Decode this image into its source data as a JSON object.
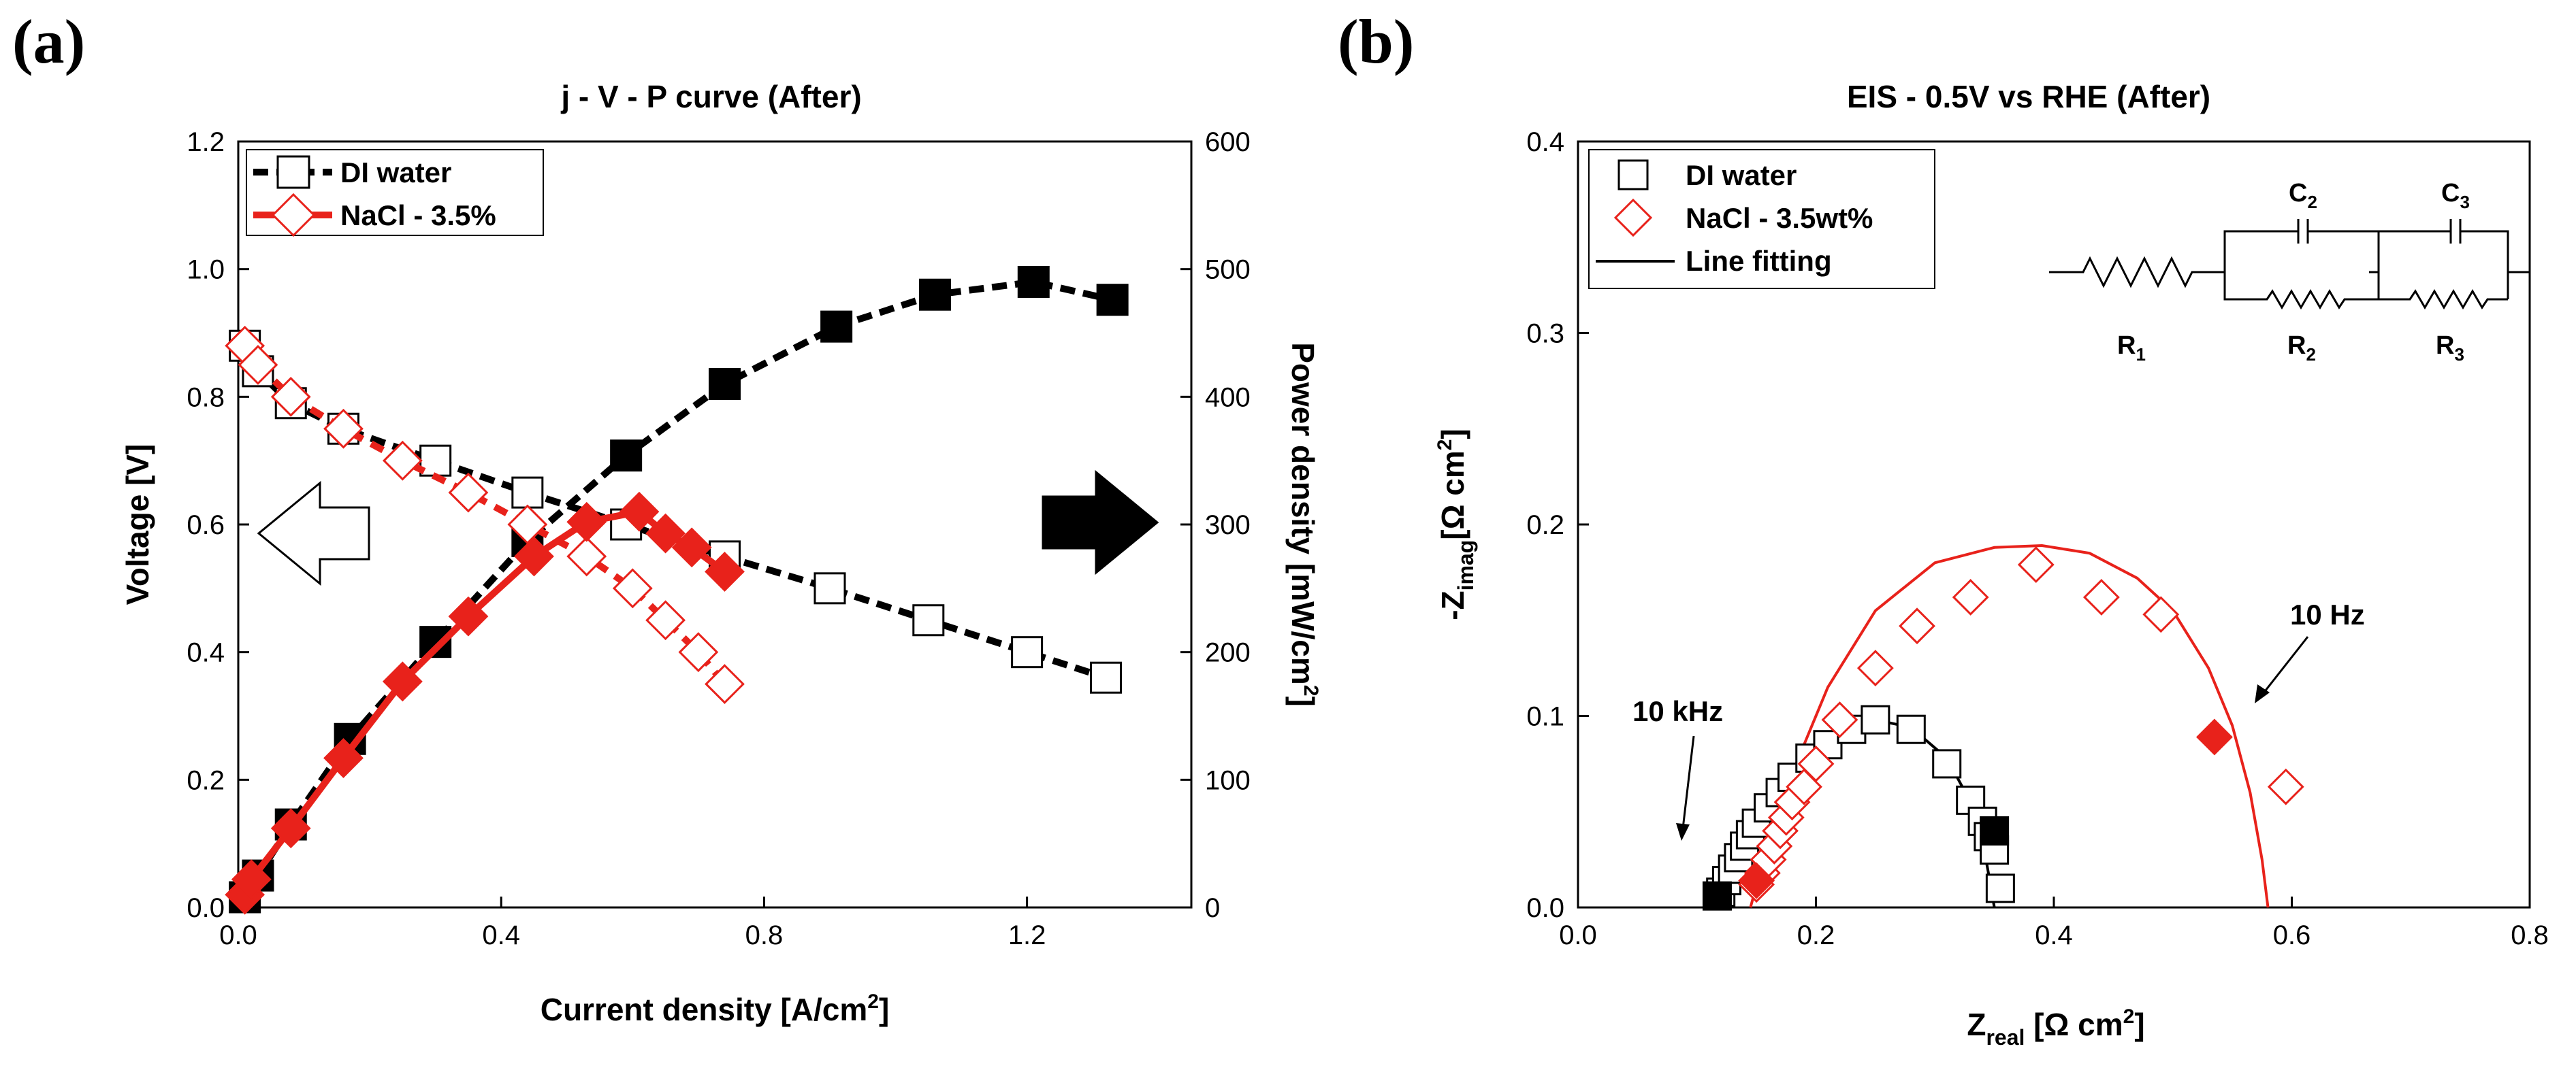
{
  "panels": {
    "a_label": "(a)",
    "b_label": "(b)"
  },
  "colors": {
    "black": "#000000",
    "red": "#e8221b"
  },
  "circuit": {
    "r1": "R",
    "r1_sub": "1",
    "r2": "R",
    "r2_sub": "2",
    "r3": "R",
    "r3_sub": "3",
    "c2": "C",
    "c2_sub": "2",
    "c3": "C",
    "c3_sub": "3"
  },
  "chart_data": [
    {
      "type": "line",
      "title": "j - V - P curve (After)",
      "xlabel": "Current density [A/cm",
      "xlabel_sup": "2",
      "xlabel_end": "]",
      "ylabel": "Voltage [V]",
      "y2label": "Power density [mW/cm",
      "y2label_sup": "2",
      "y2label_end": "]",
      "xlim": [
        0,
        1.45
      ],
      "ylim": [
        0,
        1.2
      ],
      "y2lim": [
        0,
        600
      ],
      "xticks": [
        "0.0",
        "0.4",
        "0.8",
        "1.2"
      ],
      "yticks": [
        "0.0",
        "0.2",
        "0.4",
        "0.6",
        "0.8",
        "1.0",
        "1.2"
      ],
      "y2ticks": [
        "0",
        "100",
        "200",
        "300",
        "400",
        "500",
        "600"
      ],
      "legend": [
        "DI water",
        "NaCl - 3.5%"
      ],
      "series": [
        {
          "name": "DI water",
          "kind": "voltage",
          "marker": "square-open",
          "color": "#000000",
          "x": [
            0.01,
            0.03,
            0.08,
            0.16,
            0.3,
            0.44,
            0.59,
            0.74,
            0.9,
            1.05,
            1.2,
            1.32
          ],
          "y": [
            0.88,
            0.84,
            0.79,
            0.75,
            0.7,
            0.65,
            0.6,
            0.55,
            0.5,
            0.45,
            0.4,
            0.36
          ]
        },
        {
          "name": "DI water",
          "kind": "power",
          "marker": "square-filled",
          "color": "#000000",
          "x": [
            0.01,
            0.03,
            0.08,
            0.17,
            0.3,
            0.44,
            0.59,
            0.74,
            0.91,
            1.06,
            1.21,
            1.33
          ],
          "y": [
            8,
            25,
            65,
            132,
            208,
            287,
            354,
            410,
            455,
            480,
            490,
            476
          ]
        },
        {
          "name": "NaCl - 3.5%",
          "kind": "voltage",
          "marker": "diamond-open",
          "color": "#e8221b",
          "x": [
            0.01,
            0.03,
            0.08,
            0.16,
            0.25,
            0.35,
            0.44,
            0.53,
            0.6,
            0.65,
            0.7,
            0.74
          ],
          "y": [
            0.88,
            0.85,
            0.8,
            0.75,
            0.7,
            0.65,
            0.6,
            0.55,
            0.5,
            0.45,
            0.4,
            0.35
          ]
        },
        {
          "name": "NaCl - 3.5%",
          "kind": "power",
          "marker": "diamond-filled",
          "color": "#e8221b",
          "x": [
            0.01,
            0.02,
            0.08,
            0.16,
            0.25,
            0.35,
            0.45,
            0.53,
            0.61,
            0.65,
            0.69,
            0.74
          ],
          "y": [
            10,
            22,
            62,
            117,
            177,
            228,
            275,
            302,
            310,
            293,
            282,
            263
          ]
        }
      ]
    },
    {
      "type": "scatter",
      "title": "EIS - 0.5V vs RHE (After)",
      "xlabel": "Z",
      "xlabel_sub": "real",
      "xlabel_unit": " [Ω  cm",
      "xlabel_sup": "2",
      "xlabel_end": "]",
      "ylabel": "-Z",
      "ylabel_sub": "imag",
      "ylabel_unit": "[Ω cm",
      "ylabel_sup": "2",
      "ylabel_end": "]",
      "xlim": [
        0,
        0.8
      ],
      "ylim": [
        0,
        0.4
      ],
      "xticks": [
        "0.0",
        "0.2",
        "0.4",
        "0.6",
        "0.8"
      ],
      "yticks": [
        "0.0",
        "0.1",
        "0.2",
        "0.3",
        "0.4"
      ],
      "legend": [
        "DI water",
        "NaCl - 3.5wt%",
        "Line fitting"
      ],
      "annotations": [
        "10 kHz",
        "10 Hz"
      ],
      "series": [
        {
          "name": "DI water",
          "marker": "square-open",
          "color": "#000000",
          "x": [
            0.12,
            0.125,
            0.13,
            0.135,
            0.14,
            0.145,
            0.15,
            0.16,
            0.17,
            0.18,
            0.195,
            0.21,
            0.23,
            0.25,
            0.28,
            0.31,
            0.33,
            0.34,
            0.345,
            0.35,
            0.355
          ],
          "y": [
            0.008,
            0.014,
            0.02,
            0.026,
            0.032,
            0.038,
            0.044,
            0.052,
            0.06,
            0.068,
            0.078,
            0.085,
            0.093,
            0.098,
            0.093,
            0.075,
            0.056,
            0.045,
            0.037,
            0.03,
            0.01
          ]
        },
        {
          "name": "DI water (10 kHz / 10 Hz)",
          "marker": "square-filled",
          "color": "#000000",
          "x": [
            0.117,
            0.35
          ],
          "y": [
            0.006,
            0.04
          ]
        },
        {
          "name": "NaCl - 3.5wt%",
          "marker": "diamond-open",
          "color": "#e8221b",
          "x": [
            0.15,
            0.155,
            0.16,
            0.165,
            0.17,
            0.175,
            0.18,
            0.19,
            0.2,
            0.22,
            0.25,
            0.285,
            0.33,
            0.385,
            0.44,
            0.49,
            0.595
          ],
          "y": [
            0.012,
            0.018,
            0.025,
            0.032,
            0.04,
            0.047,
            0.055,
            0.063,
            0.075,
            0.098,
            0.125,
            0.147,
            0.162,
            0.179,
            0.162,
            0.153,
            0.063
          ]
        },
        {
          "name": "NaCl - 3.5wt% (10 Hz)",
          "marker": "diamond-filled",
          "color": "#e8221b",
          "x": [
            0.15,
            0.535
          ],
          "y": [
            0.014,
            0.089
          ]
        },
        {
          "name": "Line fitting (NaCl)",
          "marker": "line",
          "color": "#e8221b",
          "x": [
            0.145,
            0.16,
            0.18,
            0.21,
            0.25,
            0.3,
            0.35,
            0.39,
            0.43,
            0.47,
            0.5,
            0.53,
            0.55,
            0.565,
            0.575,
            0.58
          ],
          "y": [
            0.0,
            0.035,
            0.07,
            0.115,
            0.155,
            0.18,
            0.188,
            0.189,
            0.185,
            0.172,
            0.155,
            0.125,
            0.095,
            0.06,
            0.025,
            0.0
          ]
        },
        {
          "name": "Line fitting (DI)",
          "marker": "line",
          "color": "#000000",
          "x": [
            0.11,
            0.13,
            0.16,
            0.19,
            0.22,
            0.25,
            0.28,
            0.31,
            0.33,
            0.34,
            0.345,
            0.35
          ],
          "y": [
            0.0,
            0.03,
            0.058,
            0.078,
            0.092,
            0.098,
            0.094,
            0.078,
            0.055,
            0.035,
            0.018,
            0.0
          ]
        }
      ]
    }
  ]
}
